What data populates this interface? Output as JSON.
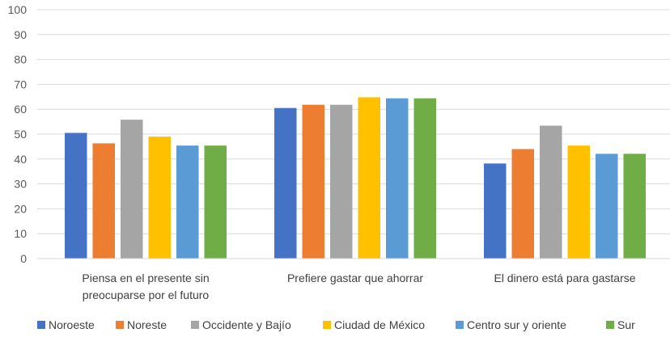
{
  "chart_data": {
    "type": "bar",
    "title": "",
    "xlabel": "",
    "ylabel": "",
    "ylim": [
      0,
      100
    ],
    "yticks": [
      0,
      10,
      20,
      30,
      40,
      50,
      60,
      70,
      80,
      90,
      100
    ],
    "grid": true,
    "legend_position": "bottom",
    "categories": [
      [
        "Piensa en el presente sin",
        "preocuparse por el futuro"
      ],
      [
        "Prefiere gastar que ahorrar"
      ],
      [
        "El dinero está para gastarse"
      ]
    ],
    "series": [
      {
        "name": "Noroeste",
        "color": "#4472C4",
        "values": [
          50.5,
          60.5,
          38.2
        ]
      },
      {
        "name": "Noreste",
        "color": "#ED7D31",
        "values": [
          46.3,
          61.8,
          44.0
        ]
      },
      {
        "name": "Occidente y Bajío",
        "color": "#A5A5A5",
        "values": [
          55.8,
          61.8,
          53.4
        ]
      },
      {
        "name": "Ciudad de México",
        "color": "#FFC000",
        "values": [
          49.0,
          64.8,
          45.4
        ]
      },
      {
        "name": "Centro sur y oriente",
        "color": "#5B9BD5",
        "values": [
          45.4,
          64.4,
          42.1
        ]
      },
      {
        "name": "Sur",
        "color": "#70AD47",
        "values": [
          45.4,
          64.4,
          42.1
        ]
      }
    ]
  }
}
